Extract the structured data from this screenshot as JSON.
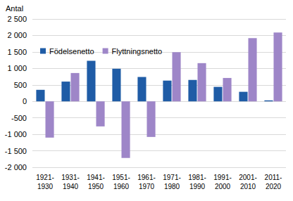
{
  "chart_data": {
    "type": "bar",
    "y_label": "Antal",
    "categories": [
      "1921-1930",
      "1931-1940",
      "1941-1950",
      "1951-1960",
      "1961-1970",
      "1971-1980",
      "1981-1990",
      "1991-2000",
      "2001-2010",
      "2011-2020"
    ],
    "series": [
      {
        "name": "Födelsenetto",
        "color": "#1f5ca6",
        "values": [
          350,
          600,
          1230,
          990,
          740,
          630,
          650,
          440,
          290,
          30
        ]
      },
      {
        "name": "Flyttningsnetto",
        "color": "#9e86c8",
        "values": [
          -1100,
          860,
          -760,
          -1720,
          -1080,
          1490,
          1160,
          710,
          1920,
          2090
        ]
      }
    ],
    "ylim": [
      -2000,
      2500
    ],
    "yticks": [
      {
        "value": -2000,
        "label": "-2 000"
      },
      {
        "value": -1500,
        "label": "-1 500"
      },
      {
        "value": -1000,
        "label": "-1 000"
      },
      -500,
      0,
      500,
      {
        "value": 1000,
        "label": "1 000"
      },
      {
        "value": 1500,
        "label": "1 500"
      },
      {
        "value": 2000,
        "label": "2 000"
      },
      {
        "value": 2500,
        "label": "2 500"
      }
    ],
    "grid": true,
    "legend": "upper left"
  }
}
